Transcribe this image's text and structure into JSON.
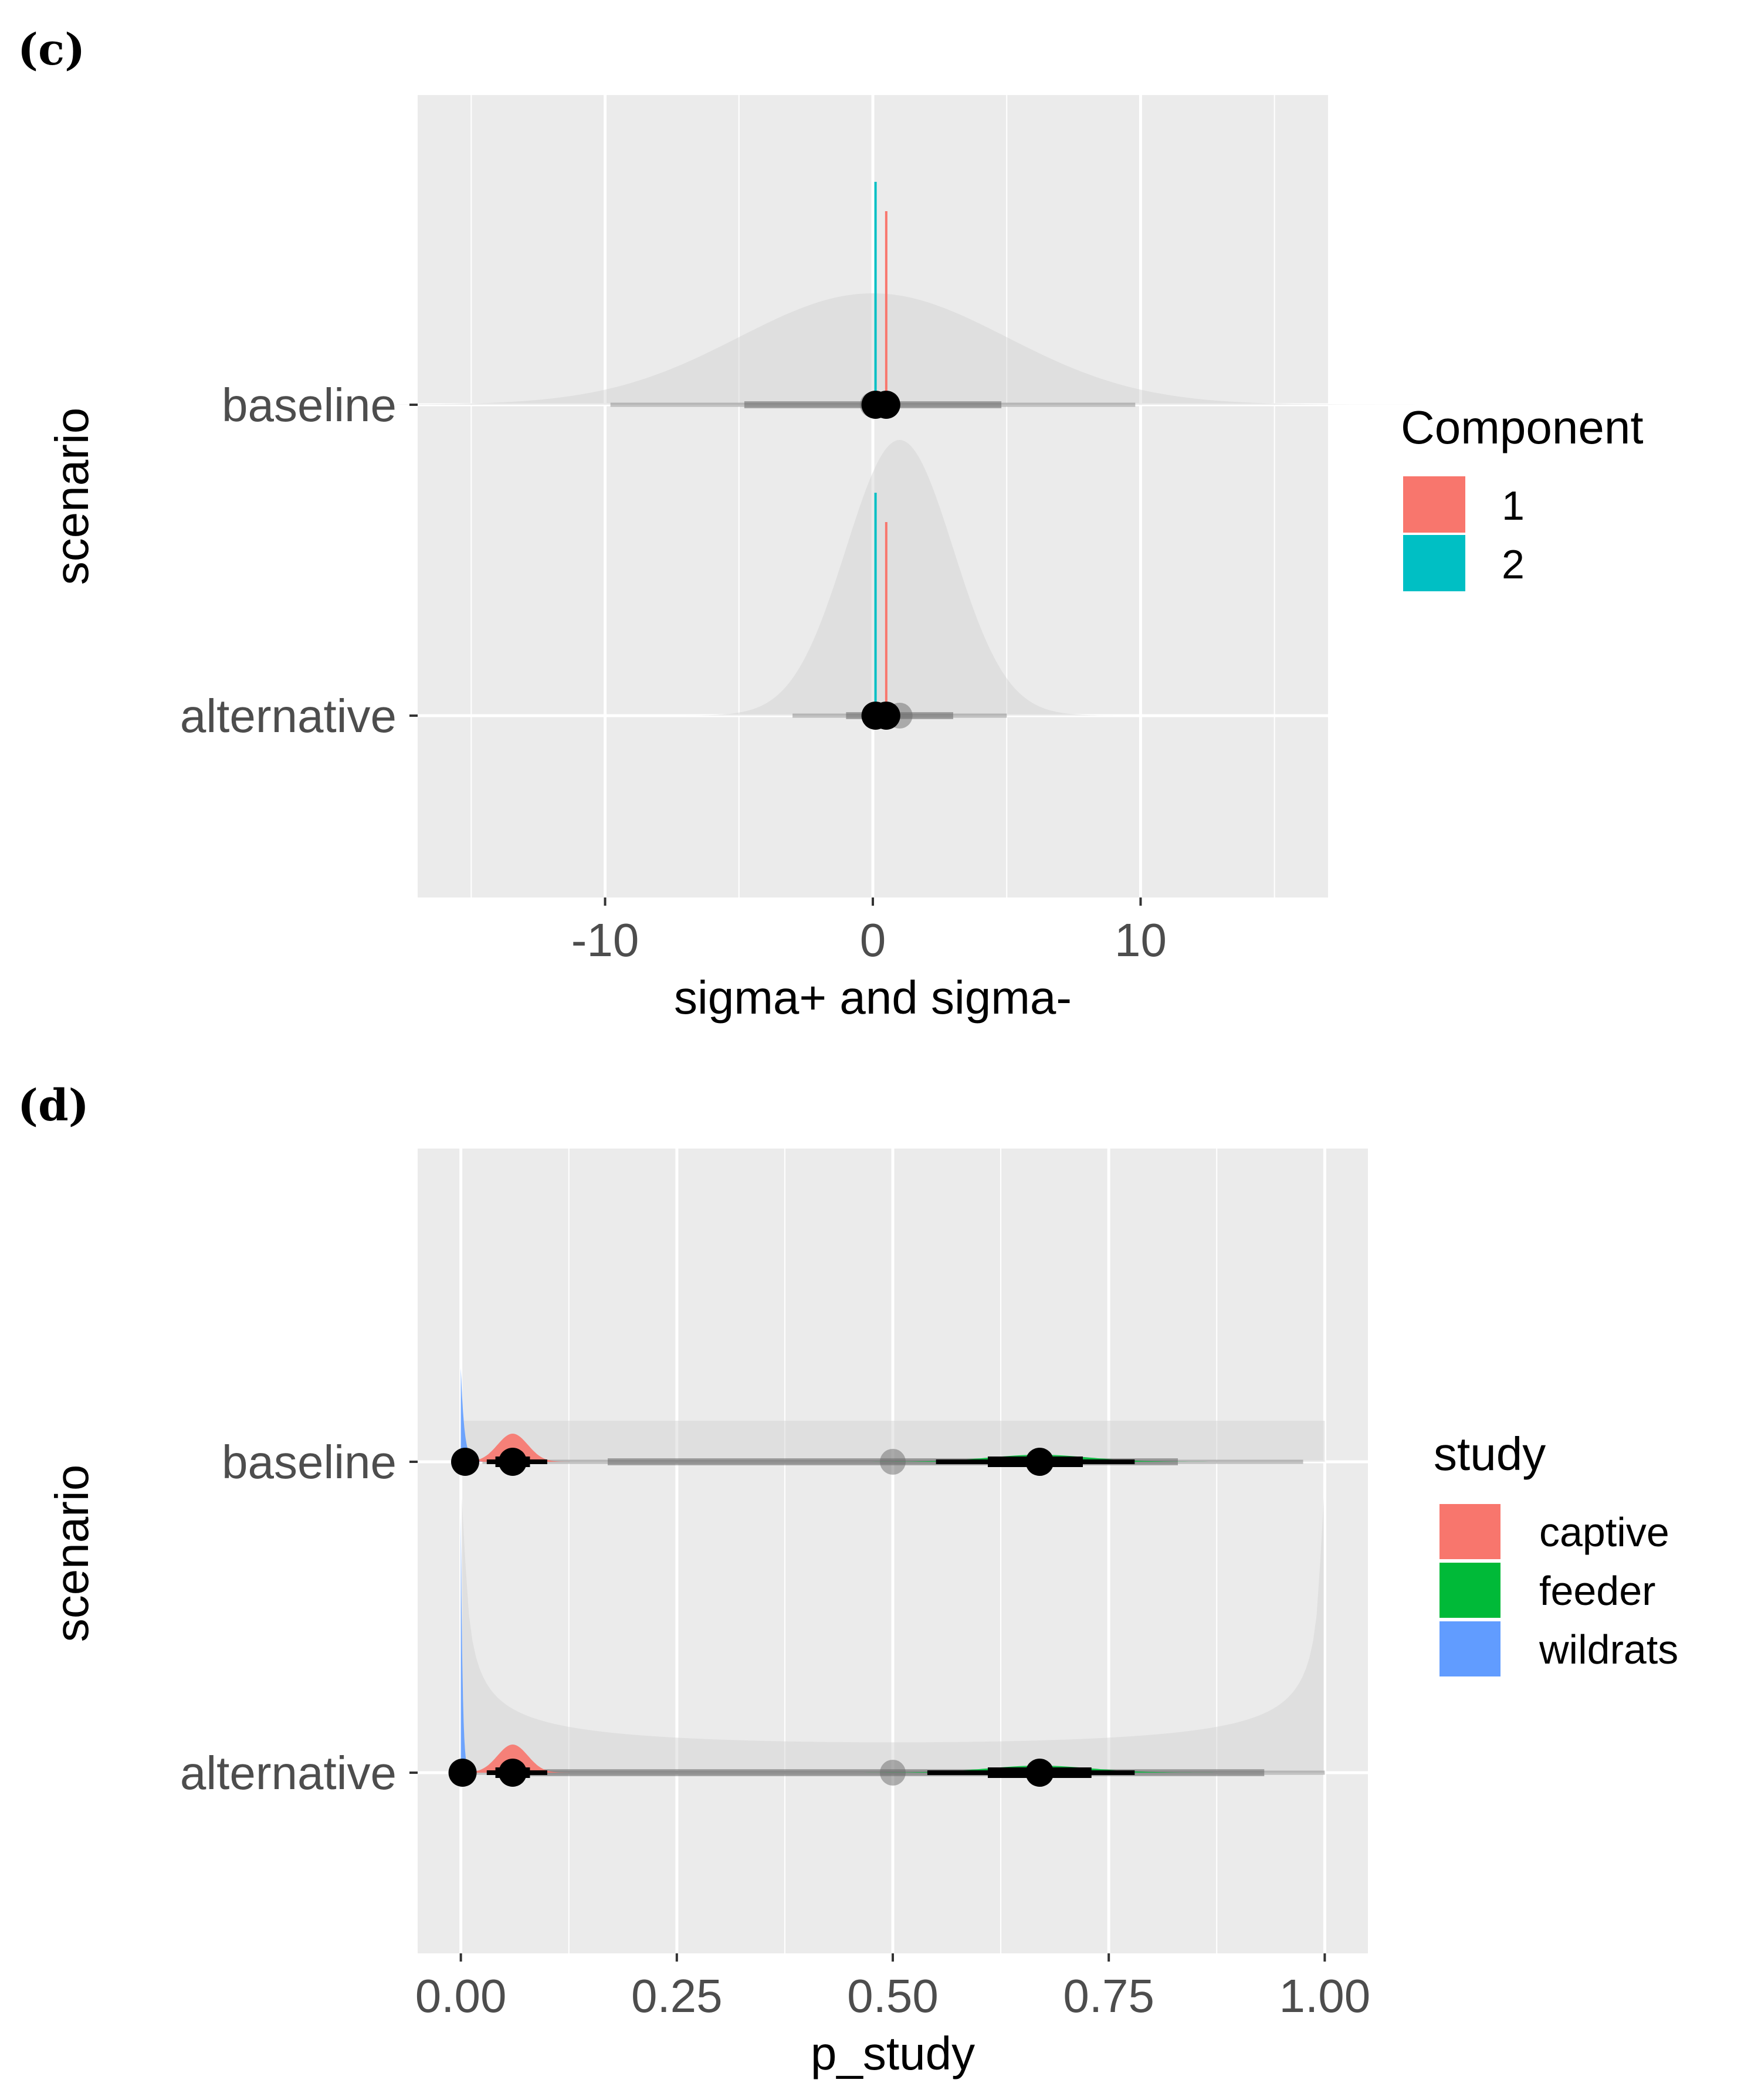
{
  "chart_data": [
    {
      "panel_label": "(c)",
      "type": "halfeye",
      "xlabel": "sigma+ and sigma-",
      "ylabel": "scenario",
      "xlim": [
        -17,
        17
      ],
      "x_ticks": [
        -10,
        0,
        10
      ],
      "x_tick_labels": [
        "-10",
        "0",
        "10"
      ],
      "x_minor_ticks": [
        -15,
        -5,
        5,
        15
      ],
      "categories": [
        "baseline",
        "alternative"
      ],
      "grid": true,
      "legend_title": "Component",
      "legend_position": "right",
      "legend": [
        {
          "label": "1",
          "color": "#F8766D"
        },
        {
          "label": "2",
          "color": "#00BFC4"
        }
      ],
      "prior": [
        {
          "scenario": "baseline",
          "distribution": "normal",
          "mean": 0,
          "sd": 5,
          "median": 0,
          "interval_66": [
            -4.8,
            4.8
          ],
          "interval_95": [
            -9.8,
            9.8
          ]
        },
        {
          "scenario": "alternative",
          "distribution": "normal",
          "mean": 1,
          "sd": 2,
          "median": 1,
          "interval_66": [
            -1,
            3
          ],
          "interval_95": [
            -3,
            5
          ]
        }
      ],
      "series": [
        {
          "name": "1",
          "color": "#F8766D",
          "points": [
            {
              "scenario": "baseline",
              "median": 0.5,
              "interval_66": [
                0.45,
                0.55
              ],
              "interval_95": [
                0.4,
                0.6
              ]
            },
            {
              "scenario": "alternative",
              "median": 0.5,
              "interval_66": [
                0.45,
                0.55
              ],
              "interval_95": [
                0.4,
                0.6
              ]
            }
          ]
        },
        {
          "name": "2",
          "color": "#00BFC4",
          "points": [
            {
              "scenario": "baseline",
              "median": 0.1,
              "interval_66": [
                0.05,
                0.15
              ],
              "interval_95": [
                0.0,
                0.2
              ]
            },
            {
              "scenario": "alternative",
              "median": 0.1,
              "interval_66": [
                0.05,
                0.15
              ],
              "interval_95": [
                0.0,
                0.2
              ]
            }
          ]
        }
      ]
    },
    {
      "panel_label": "(d)",
      "type": "halfeye",
      "xlabel": "p_study",
      "ylabel": "scenario",
      "xlim": [
        -0.05,
        1.05
      ],
      "x_ticks": [
        0,
        0.25,
        0.5,
        0.75,
        1
      ],
      "x_tick_labels": [
        "0.00",
        "0.25",
        "0.50",
        "0.75",
        "1.00"
      ],
      "x_minor_ticks": [
        0.125,
        0.375,
        0.625,
        0.875
      ],
      "categories": [
        "baseline",
        "alternative"
      ],
      "grid": true,
      "legend_title": "study",
      "legend_position": "right",
      "legend": [
        {
          "label": "captive",
          "color": "#F8766D"
        },
        {
          "label": "feeder",
          "color": "#00BA38"
        },
        {
          "label": "wildrats",
          "color": "#619CFF"
        }
      ],
      "prior": [
        {
          "scenario": "baseline",
          "distribution": "uniform",
          "min": 0,
          "max": 1,
          "median": 0.5,
          "interval_66": [
            0.17,
            0.83
          ],
          "interval_95": [
            0.025,
            0.975
          ]
        },
        {
          "scenario": "alternative",
          "distribution": "beta(0.5,0.5)",
          "median": 0.5,
          "interval_66": [
            0.07,
            0.93
          ],
          "interval_95": [
            0.0,
            1.0
          ]
        }
      ],
      "series": [
        {
          "name": "captive",
          "color": "#F8766D",
          "points": [
            {
              "scenario": "baseline",
              "median": 0.06,
              "interval_66": [
                0.04,
                0.08
              ],
              "interval_95": [
                0.03,
                0.1
              ]
            },
            {
              "scenario": "alternative",
              "median": 0.06,
              "interval_66": [
                0.04,
                0.08
              ],
              "interval_95": [
                0.03,
                0.1
              ]
            }
          ]
        },
        {
          "name": "feeder",
          "color": "#00BA38",
          "points": [
            {
              "scenario": "baseline",
              "median": 0.67,
              "interval_66": [
                0.61,
                0.72
              ],
              "interval_95": [
                0.55,
                0.78
              ]
            },
            {
              "scenario": "alternative",
              "median": 0.67,
              "interval_66": [
                0.61,
                0.73
              ],
              "interval_95": [
                0.54,
                0.78
              ]
            }
          ]
        },
        {
          "name": "wildrats",
          "color": "#619CFF",
          "points": [
            {
              "scenario": "baseline",
              "median": 0.005,
              "interval_66": [
                0.002,
                0.01
              ],
              "interval_95": [
                0.0,
                0.02
              ]
            },
            {
              "scenario": "alternative",
              "median": 0.002,
              "interval_66": [
                0.001,
                0.004
              ],
              "interval_95": [
                0.0,
                0.01
              ]
            }
          ]
        }
      ]
    }
  ]
}
